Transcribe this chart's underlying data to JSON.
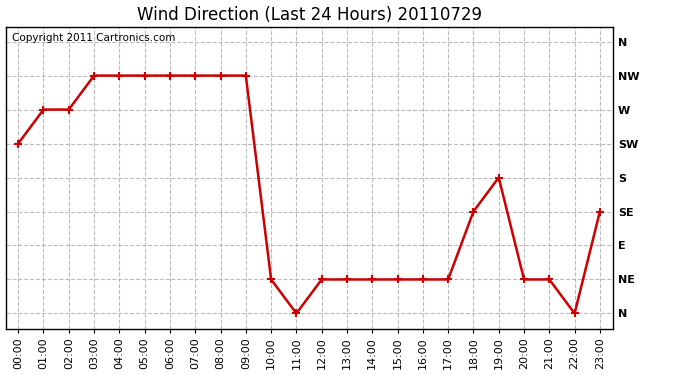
{
  "title": "Wind Direction (Last 24 Hours) 20110729",
  "copyright": "Copyright 2011 Cartronics.com",
  "line_color": "#cc0000",
  "marker": "+",
  "marker_size": 6,
  "line_width": 1.8,
  "background_color": "#ffffff",
  "grid_color": "#bbbbbb",
  "hours": [
    "00:00",
    "01:00",
    "02:00",
    "03:00",
    "04:00",
    "05:00",
    "06:00",
    "07:00",
    "08:00",
    "09:00",
    "10:00",
    "11:00",
    "12:00",
    "13:00",
    "14:00",
    "15:00",
    "16:00",
    "17:00",
    "18:00",
    "19:00",
    "20:00",
    "21:00",
    "22:00",
    "23:00"
  ],
  "wind_values": [
    225,
    270,
    270,
    315,
    315,
    315,
    315,
    315,
    315,
    315,
    45,
    0,
    45,
    45,
    45,
    45,
    45,
    45,
    135,
    180,
    45,
    45,
    0,
    135
  ],
  "ytick_positions": [
    360,
    315,
    270,
    225,
    180,
    135,
    90,
    45,
    0
  ],
  "ytick_labels": [
    "N",
    "NW",
    "W",
    "SW",
    "S",
    "SE",
    "E",
    "NE",
    "N"
  ],
  "ylim_min": -20,
  "ylim_max": 380,
  "title_fontsize": 12,
  "tick_fontsize": 8,
  "copyright_fontsize": 7.5
}
